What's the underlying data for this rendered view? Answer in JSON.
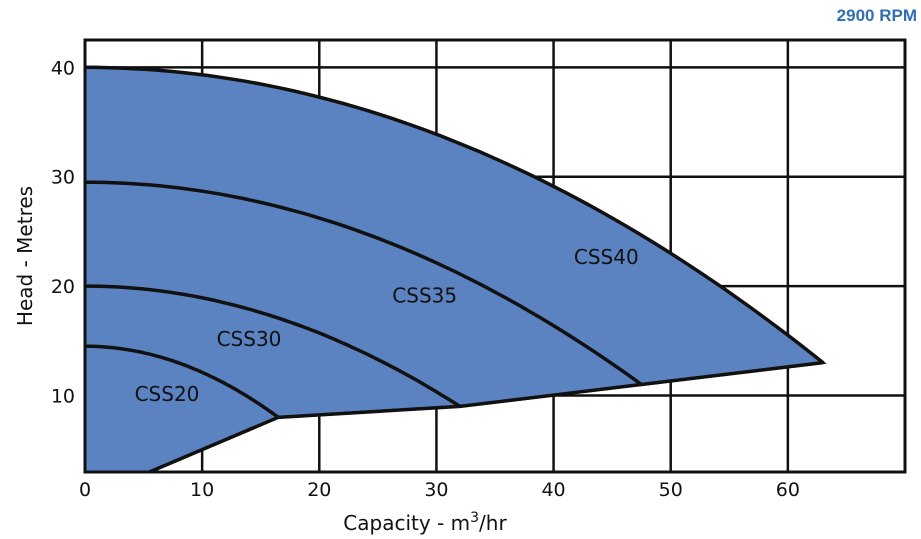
{
  "header": {
    "speed": "2900 RPM"
  },
  "colors": {
    "fill": "#5b82c1",
    "line": "#111111",
    "accent": "#2f6fb3"
  },
  "chart_data": {
    "type": "area",
    "xlabel": "Capacity - m",
    "xlabel_sup": "3",
    "xlabel_tail": "/hr",
    "ylabel": "Head - Metres",
    "xlim": [
      0,
      70
    ],
    "ylim": [
      3,
      42.5
    ],
    "grid": true,
    "xticks": [
      0,
      10,
      20,
      30,
      40,
      50,
      60
    ],
    "yticks": [
      10,
      20,
      30,
      40
    ],
    "series": [
      {
        "name": "CSS20",
        "max_head": 14.5,
        "end_flow": 16.5,
        "end_head": 8.0,
        "label_pos": [
          7,
          9.5
        ]
      },
      {
        "name": "CSS30",
        "max_head": 20.0,
        "end_flow": 32.0,
        "end_head": 9.0,
        "label_pos": [
          14,
          14.5
        ]
      },
      {
        "name": "CSS35",
        "max_head": 29.5,
        "end_flow": 47.5,
        "end_head": 11.0,
        "label_pos": [
          29,
          18.5
        ]
      },
      {
        "name": "CSS40",
        "max_head": 40.0,
        "end_flow": 63.0,
        "end_head": 13.0,
        "label_pos": [
          44.5,
          22
        ]
      }
    ],
    "lower_limit": [
      [
        5.5,
        3.0
      ],
      [
        16.5,
        8.0
      ],
      [
        32.0,
        9.0
      ],
      [
        47.5,
        11.0
      ],
      [
        63.0,
        13.0
      ]
    ]
  }
}
